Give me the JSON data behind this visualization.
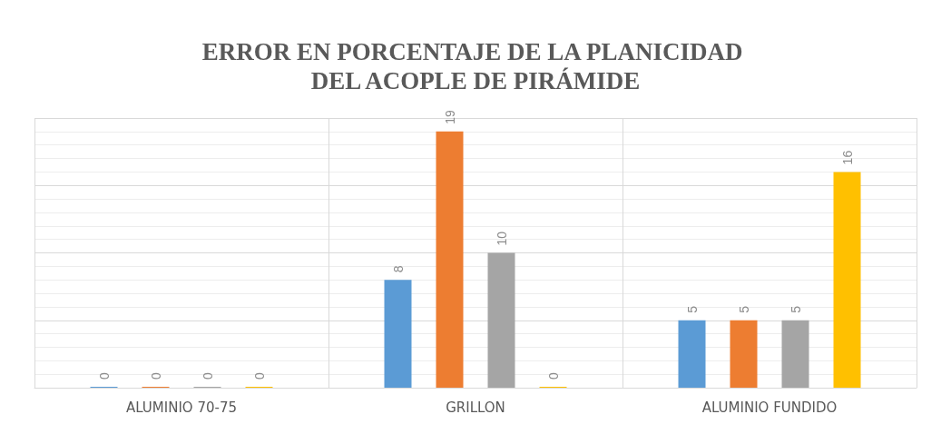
{
  "chart_data": {
    "type": "bar",
    "title": "ERROR EN PORCENTAJE DE LA PLANICIDAD DEL ACOPLE DE PIRÁMIDE",
    "categories": [
      "ALUMINIO 70-75",
      "GRILLON",
      "ALUMINIO FUNDIDO"
    ],
    "series": [
      {
        "color": "#5b9bd5",
        "values": [
          0,
          8,
          5
        ]
      },
      {
        "color": "#ed7d31",
        "values": [
          0,
          19,
          5
        ]
      },
      {
        "color": "#a5a5a5",
        "values": [
          0,
          10,
          5
        ]
      },
      {
        "color": "#ffc000",
        "values": [
          0,
          0,
          16
        ]
      }
    ],
    "ylim": [
      0,
      20
    ],
    "yticks": [
      {
        "value": 0,
        "label": null
      },
      {
        "value": 5,
        "label": null
      },
      {
        "value": 10,
        "label": null
      },
      {
        "value": 15,
        "label": null
      },
      {
        "value": 20,
        "label": null
      }
    ],
    "tick_labels": "x",
    "grid": true,
    "data_labels": true
  }
}
